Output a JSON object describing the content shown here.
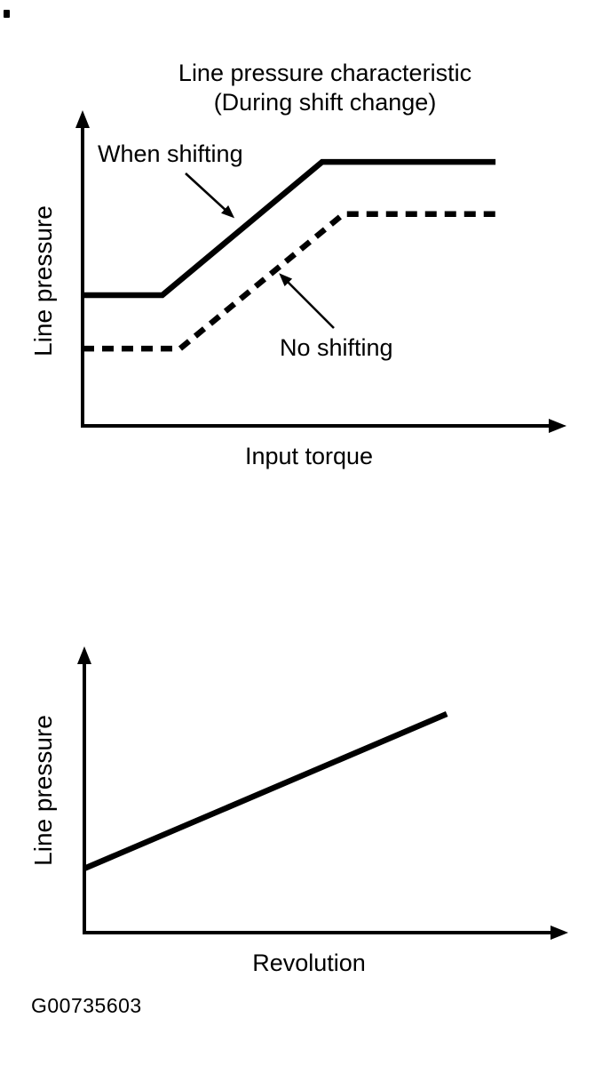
{
  "ink": "#000000",
  "paper": "#ffffff",
  "figure_code": "G00735603",
  "chart_data": [
    {
      "type": "line",
      "title": "Line pressure characteristic",
      "subtitle": "(During shift change)",
      "xlabel": "Input torque",
      "ylabel": "Line pressure",
      "x_axis": {
        "arrow": true,
        "ticks": "none",
        "numeric_labels": "none"
      },
      "y_axis": {
        "arrow": true,
        "ticks": "none",
        "numeric_labels": "none"
      },
      "coords_note": "qualitative chart; x/y given as fraction of axis length",
      "series": [
        {
          "name": "When shifting",
          "line_style": "solid",
          "x": [
            0,
            0.165,
            0.496,
            0.855
          ],
          "y": [
            0.413,
            0.413,
            0.834,
            0.834
          ]
        },
        {
          "name": "No shifting",
          "line_style": "dashed",
          "x": [
            0,
            0.202,
            0.54,
            0.855
          ],
          "y": [
            0.244,
            0.244,
            0.669,
            0.669
          ]
        }
      ],
      "annotations": [
        {
          "text": "When shifting",
          "points_to": "solid line"
        },
        {
          "text": "No shifting",
          "points_to": "dashed line"
        }
      ]
    },
    {
      "type": "line",
      "title": "",
      "subtitle": "",
      "xlabel": "Revolution",
      "ylabel": "Line pressure",
      "x_axis": {
        "arrow": true,
        "ticks": "none",
        "numeric_labels": "none"
      },
      "y_axis": {
        "arrow": true,
        "ticks": "none",
        "numeric_labels": "none"
      },
      "coords_note": "qualitative chart; x/y given as fraction of axis length",
      "series": [
        {
          "name": "Line pressure",
          "line_style": "solid",
          "x": [
            0,
            0.749
          ],
          "y": [
            0.224,
            0.764
          ]
        }
      ],
      "annotations": []
    }
  ]
}
